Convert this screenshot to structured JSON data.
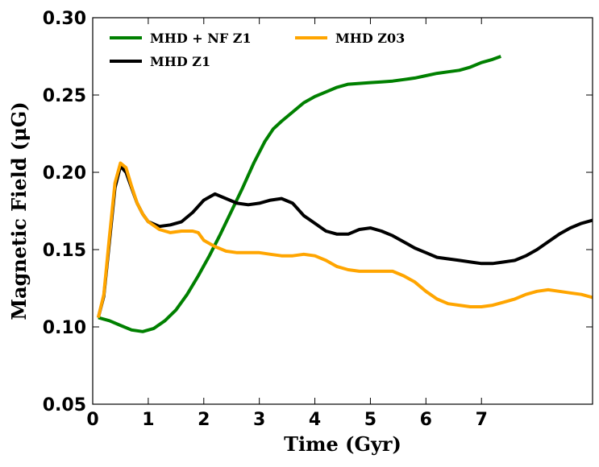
{
  "chart_data": {
    "type": "line",
    "xlabel": "Time (Gyr)",
    "ylabel": "Magnetic Field (μG)",
    "xlim": [
      0,
      9
    ],
    "ylim": [
      0.05,
      0.3
    ],
    "xticks": [
      0,
      1,
      2,
      3,
      4,
      5,
      6,
      7
    ],
    "xtick_labels": [
      "0",
      "1",
      "2",
      "3",
      "4",
      "5",
      "6",
      "7"
    ],
    "yticks": [
      0.05,
      0.1,
      0.15,
      0.2,
      0.25,
      0.3
    ],
    "ytick_labels": [
      "0.05",
      "0.10",
      "0.15",
      "0.20",
      "0.25",
      "0.30"
    ],
    "grid": false,
    "legend_position": "top-left",
    "series": [
      {
        "name": "MHD + NF Z1",
        "color": "#008000",
        "x": [
          0.1,
          0.3,
          0.5,
          0.7,
          0.9,
          1.1,
          1.3,
          1.5,
          1.7,
          1.9,
          2.1,
          2.3,
          2.5,
          2.7,
          2.9,
          3.1,
          3.25,
          3.4,
          3.6,
          3.8,
          4.0,
          4.2,
          4.4,
          4.6,
          4.8,
          5.0,
          5.2,
          5.4,
          5.6,
          5.8,
          6.0,
          6.2,
          6.4,
          6.6,
          6.8,
          7.0,
          7.2,
          7.35
        ],
        "y": [
          0.106,
          0.104,
          0.101,
          0.098,
          0.097,
          0.099,
          0.104,
          0.111,
          0.121,
          0.133,
          0.146,
          0.16,
          0.175,
          0.19,
          0.206,
          0.22,
          0.228,
          0.233,
          0.239,
          0.245,
          0.249,
          0.252,
          0.255,
          0.257,
          0.2575,
          0.258,
          0.2585,
          0.259,
          0.26,
          0.261,
          0.2625,
          0.264,
          0.265,
          0.266,
          0.268,
          0.271,
          0.273,
          0.275
        ]
      },
      {
        "name": "MHD Z1",
        "color": "#000000",
        "x": [
          0.1,
          0.2,
          0.3,
          0.4,
          0.5,
          0.6,
          0.7,
          0.8,
          0.9,
          1.0,
          1.2,
          1.4,
          1.6,
          1.8,
          2.0,
          2.2,
          2.4,
          2.6,
          2.8,
          3.0,
          3.2,
          3.4,
          3.6,
          3.8,
          4.0,
          4.2,
          4.4,
          4.6,
          4.8,
          5.0,
          5.2,
          5.4,
          5.6,
          5.8,
          6.0,
          6.2,
          6.4,
          6.6,
          6.8,
          7.0,
          7.2,
          7.4,
          7.6,
          7.8,
          8.0,
          8.2,
          8.4,
          8.6,
          8.8,
          9.0
        ],
        "y": [
          0.106,
          0.12,
          0.155,
          0.19,
          0.204,
          0.2,
          0.19,
          0.18,
          0.173,
          0.168,
          0.165,
          0.166,
          0.168,
          0.174,
          0.182,
          0.186,
          0.183,
          0.18,
          0.179,
          0.18,
          0.182,
          0.183,
          0.18,
          0.172,
          0.167,
          0.162,
          0.16,
          0.16,
          0.163,
          0.164,
          0.162,
          0.159,
          0.155,
          0.151,
          0.148,
          0.145,
          0.144,
          0.143,
          0.142,
          0.141,
          0.141,
          0.142,
          0.143,
          0.146,
          0.15,
          0.155,
          0.16,
          0.164,
          0.167,
          0.169
        ]
      },
      {
        "name": "MHD Z03",
        "color": "#FFA500",
        "x": [
          0.1,
          0.2,
          0.3,
          0.4,
          0.5,
          0.6,
          0.7,
          0.8,
          0.9,
          1.0,
          1.2,
          1.4,
          1.6,
          1.8,
          1.9,
          2.0,
          2.2,
          2.4,
          2.6,
          2.8,
          3.0,
          3.2,
          3.4,
          3.6,
          3.8,
          4.0,
          4.2,
          4.4,
          4.6,
          4.8,
          5.0,
          5.2,
          5.4,
          5.6,
          5.8,
          6.0,
          6.2,
          6.4,
          6.6,
          6.8,
          7.0,
          7.2,
          7.4,
          7.6,
          7.8,
          8.0,
          8.2,
          8.4,
          8.6,
          8.8,
          9.0
        ],
        "y": [
          0.106,
          0.121,
          0.158,
          0.193,
          0.206,
          0.203,
          0.191,
          0.18,
          0.173,
          0.168,
          0.163,
          0.161,
          0.162,
          0.162,
          0.161,
          0.156,
          0.152,
          0.149,
          0.148,
          0.148,
          0.148,
          0.147,
          0.146,
          0.146,
          0.147,
          0.146,
          0.143,
          0.139,
          0.137,
          0.136,
          0.136,
          0.136,
          0.136,
          0.133,
          0.129,
          0.123,
          0.118,
          0.115,
          0.114,
          0.113,
          0.113,
          0.114,
          0.116,
          0.118,
          0.121,
          0.123,
          0.124,
          0.123,
          0.122,
          0.121,
          0.119
        ]
      }
    ]
  }
}
